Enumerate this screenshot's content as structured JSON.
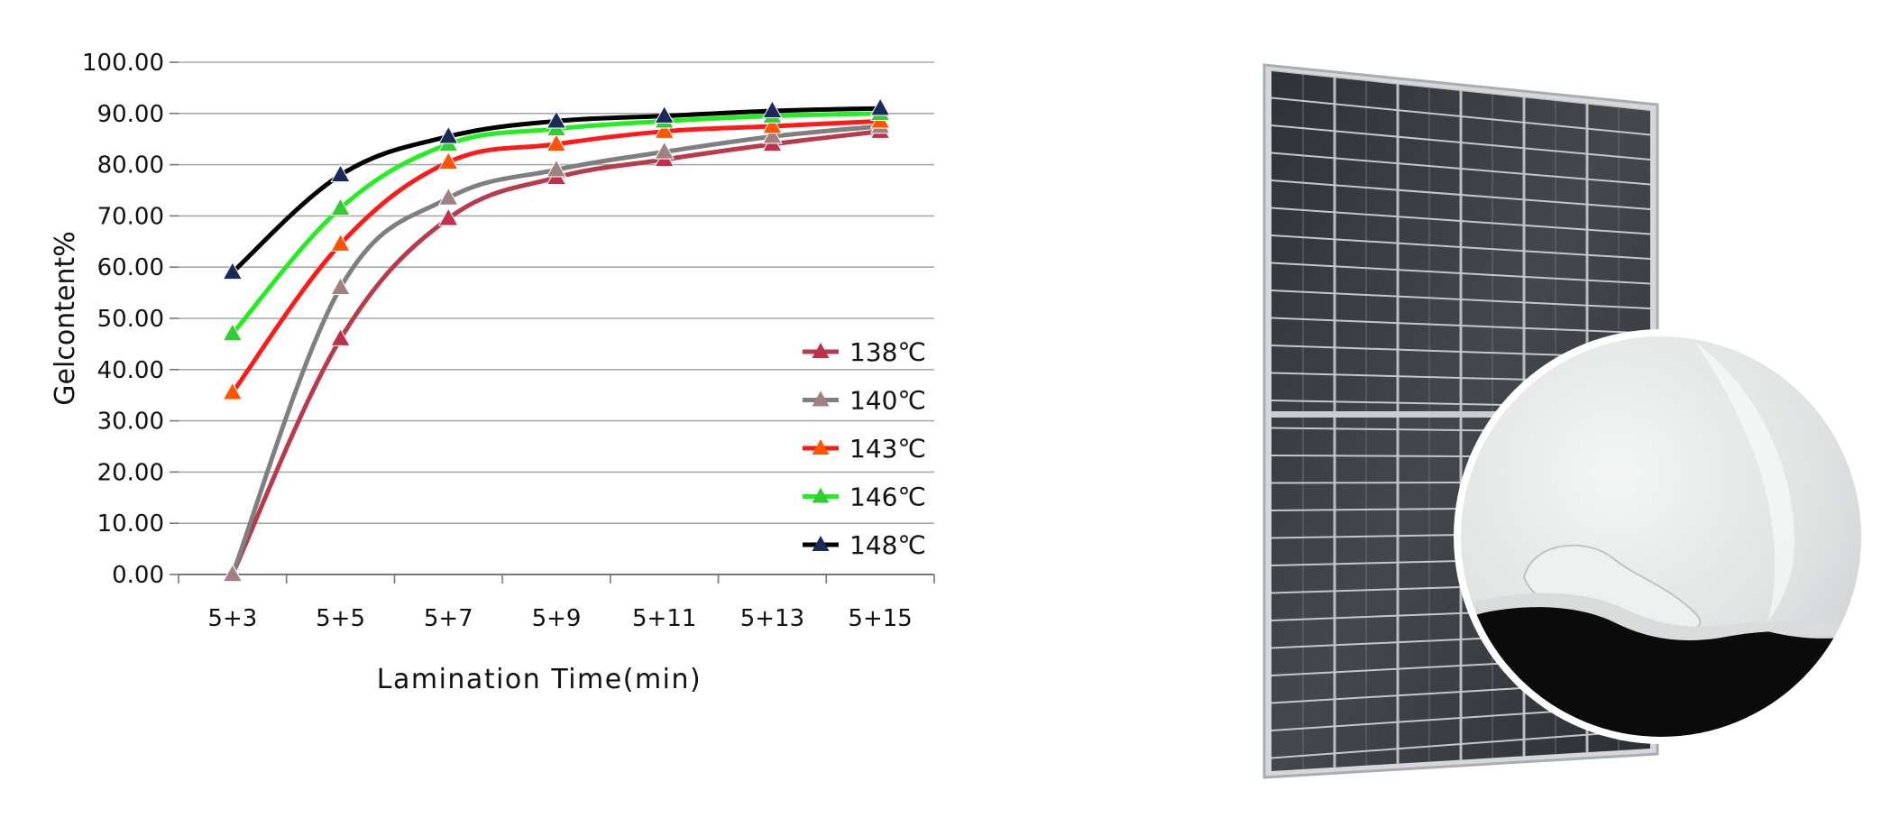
{
  "chart_data": {
    "type": "line",
    "title": "",
    "xlabel": "Lamination Time(min)",
    "ylabel": "Gelcontent%",
    "categories": [
      "5+3",
      "5+5",
      "5+7",
      "5+9",
      "5+11",
      "5+13",
      "5+15"
    ],
    "y_tick_labels": [
      "0.00",
      "10.00",
      "20.00",
      "30.00",
      "40.00",
      "50.00",
      "60.00",
      "70.00",
      "80.00",
      "90.00",
      "100.00"
    ],
    "ylim": [
      0,
      100
    ],
    "grid": "horizontal",
    "legend": "right",
    "marker": "triangle",
    "series": [
      {
        "name": "138℃",
        "color": "#b83a4b",
        "marker_color": "#c0304a",
        "values": [
          0,
          46,
          69.5,
          77.5,
          81,
          84,
          86.5
        ]
      },
      {
        "name": "140℃",
        "color": "#7f7f7f",
        "marker_color": "#a08080",
        "values": [
          0,
          56,
          73.5,
          79,
          82.5,
          85.5,
          87.5
        ]
      },
      {
        "name": "143℃",
        "color": "#ff1a1a",
        "marker_color": "#ff5500",
        "values": [
          35.5,
          64.5,
          80.5,
          84,
          86.5,
          87.5,
          88.5
        ]
      },
      {
        "name": "146℃",
        "color": "#22ee22",
        "marker_color": "#33cc33",
        "values": [
          47,
          71.5,
          84,
          87,
          88.5,
          89.5,
          90
        ]
      },
      {
        "name": "148℃",
        "color": "#000000",
        "marker_color": "#1a2a5a",
        "values": [
          59,
          78,
          85.5,
          88.5,
          89.5,
          90.5,
          91
        ]
      }
    ]
  },
  "product_photo": {
    "subject": "solar-panel",
    "inset_subject": "film-sheet-closeup",
    "frame_color": "#c9ccd0",
    "cell_color": "#3a3d41"
  }
}
